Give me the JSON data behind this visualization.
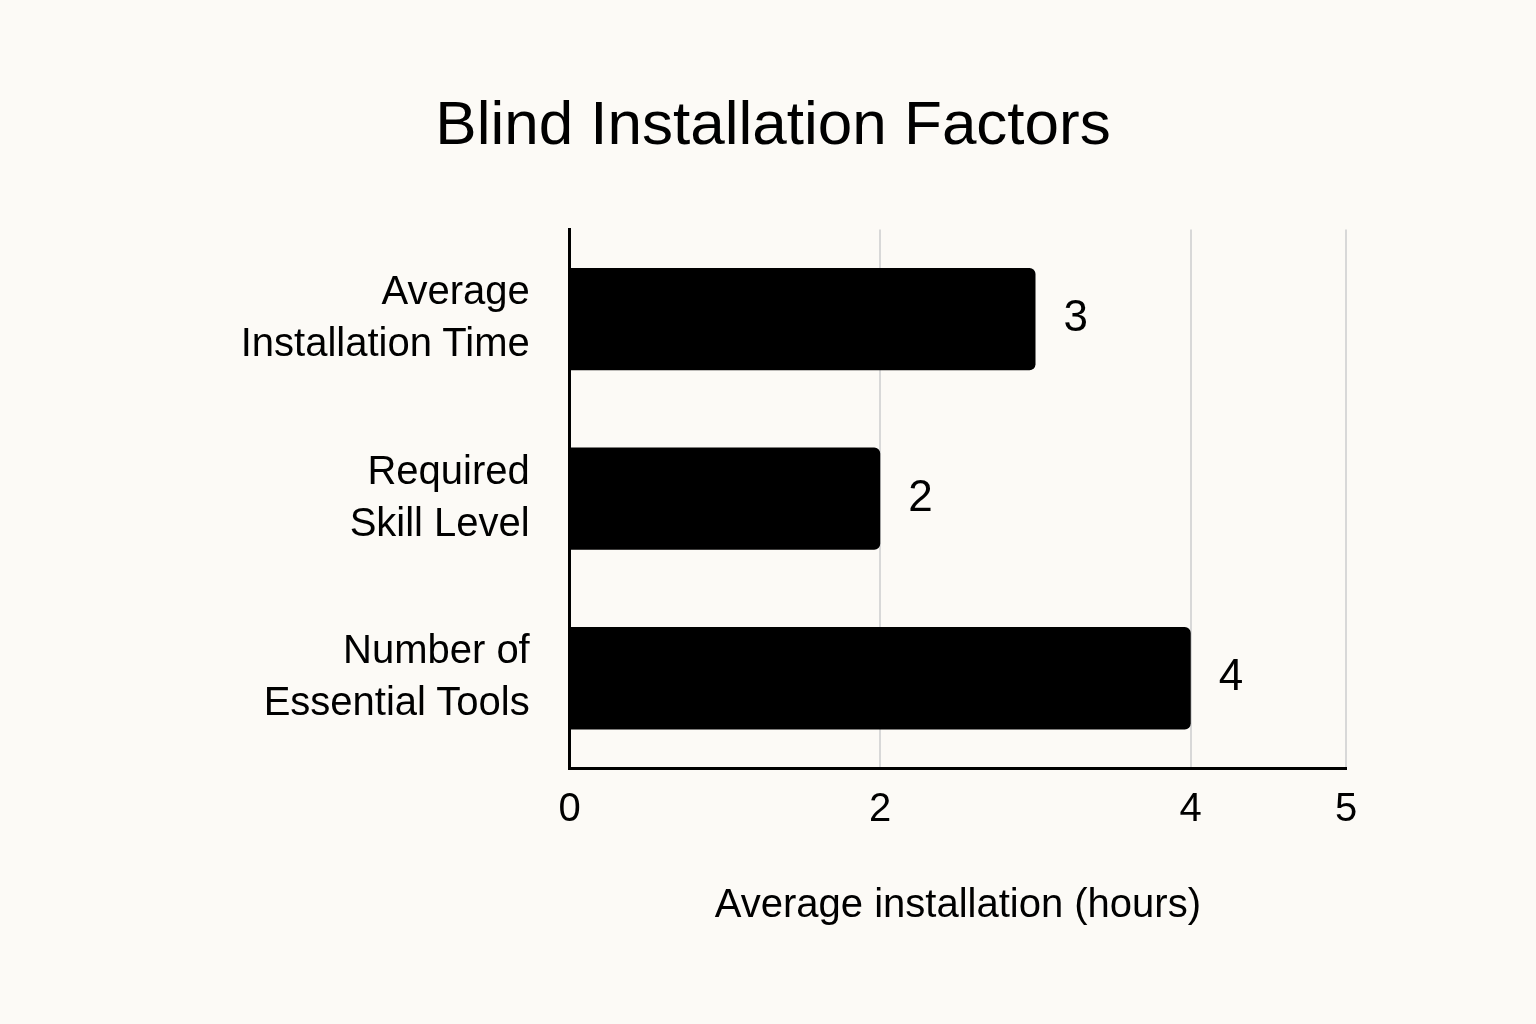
{
  "chart_data": {
    "type": "bar",
    "orientation": "horizontal",
    "title": "Blind Installation Factors",
    "categories": [
      "Average\nInstallation Time",
      "Required\nSkill Level",
      "Number of\nEssential Tools"
    ],
    "values": [
      3,
      2,
      4
    ],
    "color": "#000000",
    "xlabel": "Average installation (hours)",
    "xlim": [
      0,
      5
    ],
    "xticks": [
      0,
      2,
      4,
      5
    ],
    "grid": "x",
    "data_labels": true
  }
}
